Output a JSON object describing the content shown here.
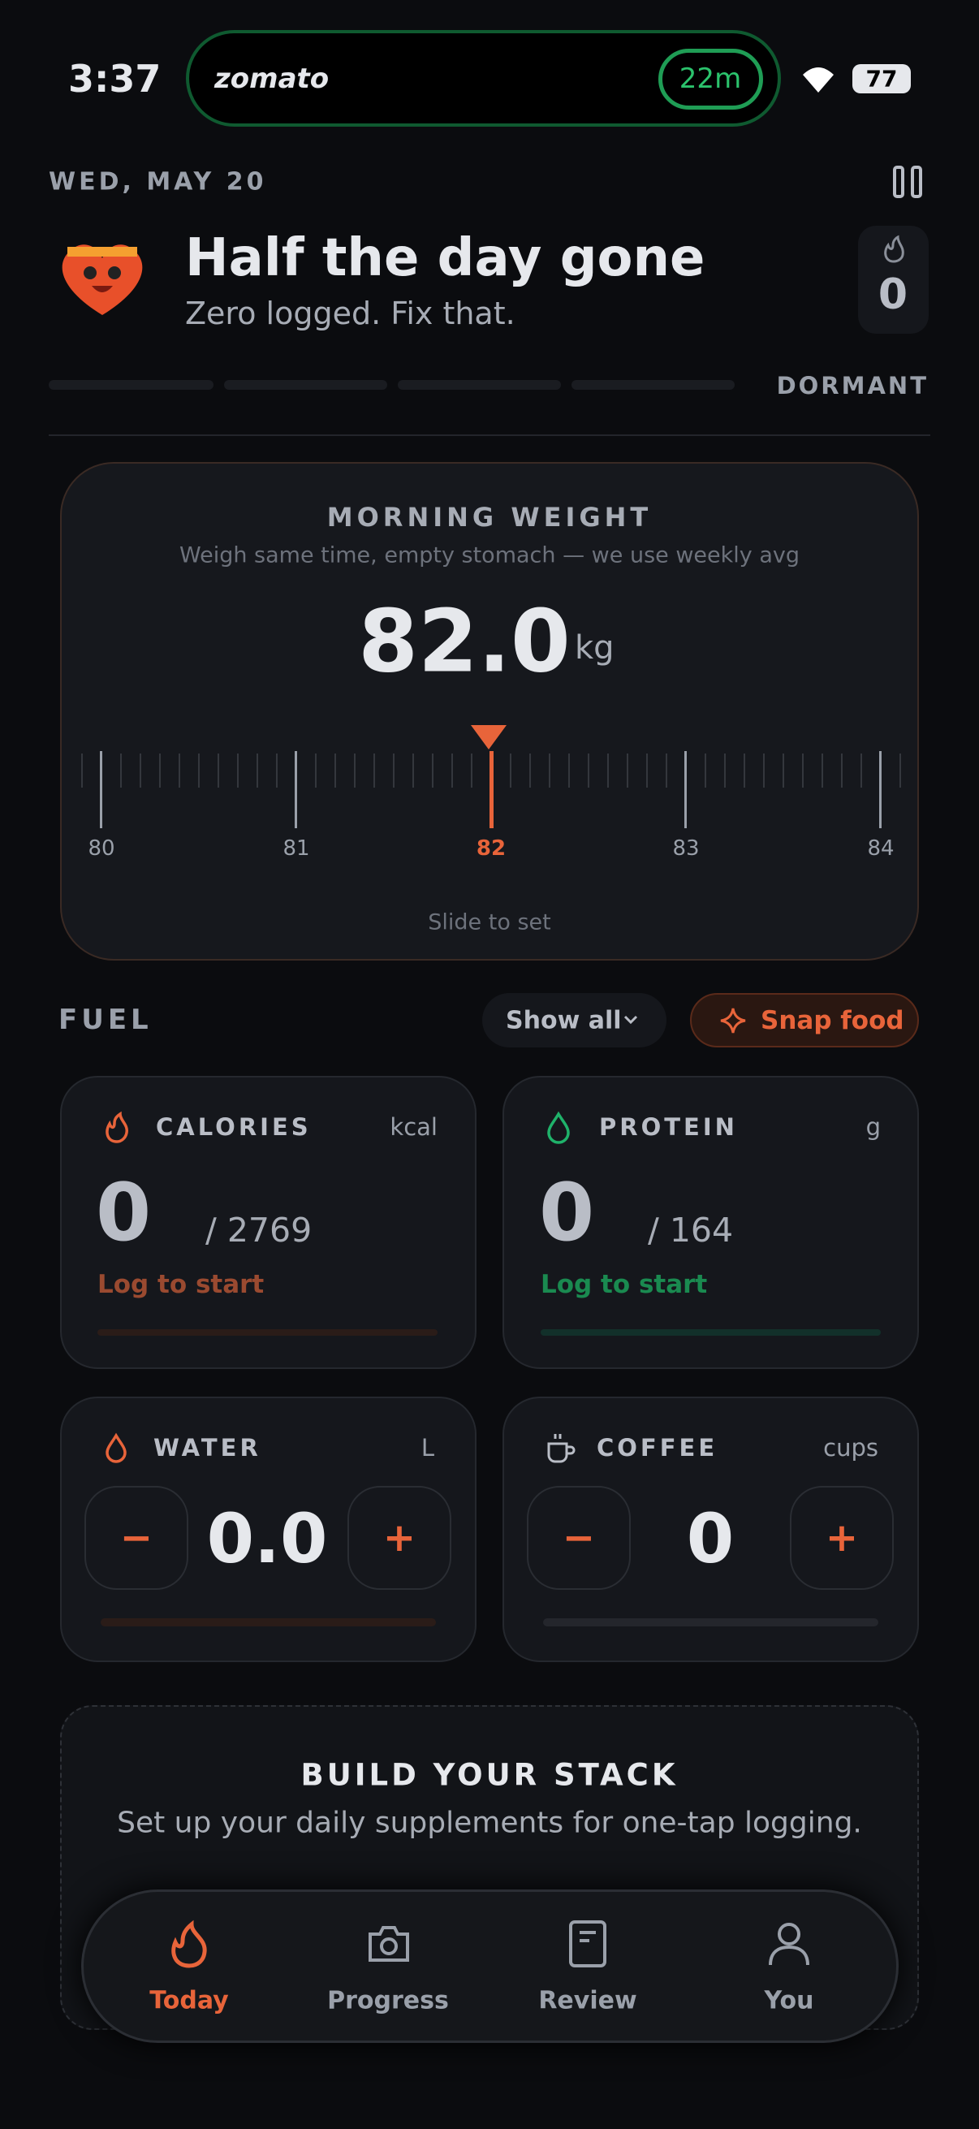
{
  "status_bar": {
    "time": "3:37",
    "app": "zomato",
    "timer": "22m",
    "battery": "77"
  },
  "header": {
    "date": "WED, MAY 20",
    "title": "Half the day gone",
    "subtitle": "Zero logged. Fix that.",
    "streak": "0",
    "status": "DORMANT"
  },
  "weight": {
    "title": "MORNING WEIGHT",
    "hint": "Weigh same time, empty stomach — we use weekly avg",
    "value": "82.0",
    "unit": "kg",
    "scale": [
      "80",
      "81",
      "82",
      "83",
      "84"
    ],
    "action": "Slide to set"
  },
  "fuel": {
    "title": "FUEL",
    "filter": "Show all",
    "snap": "Snap food",
    "cards": [
      {
        "label": "CALORIES",
        "unit": "kcal",
        "value": "0",
        "target": "/ 2769",
        "status": "Log to start"
      },
      {
        "label": "PROTEIN",
        "unit": "g",
        "value": "0",
        "target": "/ 164",
        "status": "Log to start"
      },
      {
        "label": "WATER",
        "unit": "L",
        "value": "0.0"
      },
      {
        "label": "COFFEE",
        "unit": "cups",
        "value": "0"
      }
    ]
  },
  "stack": {
    "title": "BUILD YOUR STACK",
    "subtitle": "Set up your daily supplements for one-tap logging."
  },
  "nav": [
    {
      "label": "Today"
    },
    {
      "label": "Progress"
    },
    {
      "label": "Review"
    },
    {
      "label": "You"
    }
  ]
}
